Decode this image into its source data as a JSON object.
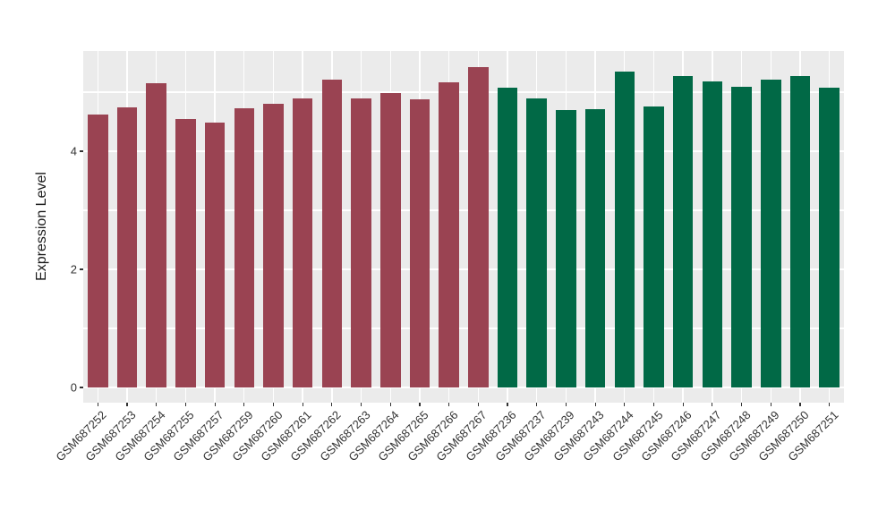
{
  "figure": {
    "background": "#FFFFFF",
    "panel_background": "#EBEBEB",
    "grid_color": "#FFFFFF",
    "axis_text_color": "#333333",
    "axis_title_color": "#1A1A1A",
    "tick_mark_color": "#333333"
  },
  "chart_data": {
    "type": "bar",
    "title": "",
    "xlabel": "",
    "ylabel": "Expression Level",
    "ylim": [
      -0.27,
      5.7
    ],
    "yticks": [
      0,
      2,
      4
    ],
    "minor_gridlines": [
      1,
      3,
      5
    ],
    "grid": true,
    "legend": false,
    "x_label_angle": 45,
    "categories": [
      "GSM687252",
      "GSM687253",
      "GSM687254",
      "GSM687255",
      "GSM687257",
      "GSM687259",
      "GSM687260",
      "GSM687261",
      "GSM687262",
      "GSM687263",
      "GSM687264",
      "GSM687265",
      "GSM687266",
      "GSM687267",
      "GSM687236",
      "GSM687237",
      "GSM687239",
      "GSM687243",
      "GSM687244",
      "GSM687245",
      "GSM687246",
      "GSM687247",
      "GSM687248",
      "GSM687249",
      "GSM687250",
      "GSM687251"
    ],
    "values": [
      4.62,
      4.74,
      5.15,
      4.55,
      4.48,
      4.72,
      4.81,
      4.89,
      5.21,
      4.89,
      4.98,
      4.88,
      5.17,
      5.43,
      5.08,
      4.89,
      4.69,
      4.71,
      5.35,
      4.76,
      5.27,
      5.18,
      5.09,
      5.21,
      5.28,
      5.08
    ],
    "groups": [
      {
        "color": "#9A4352",
        "count": 14
      },
      {
        "color": "#016946",
        "count": 12
      }
    ]
  }
}
